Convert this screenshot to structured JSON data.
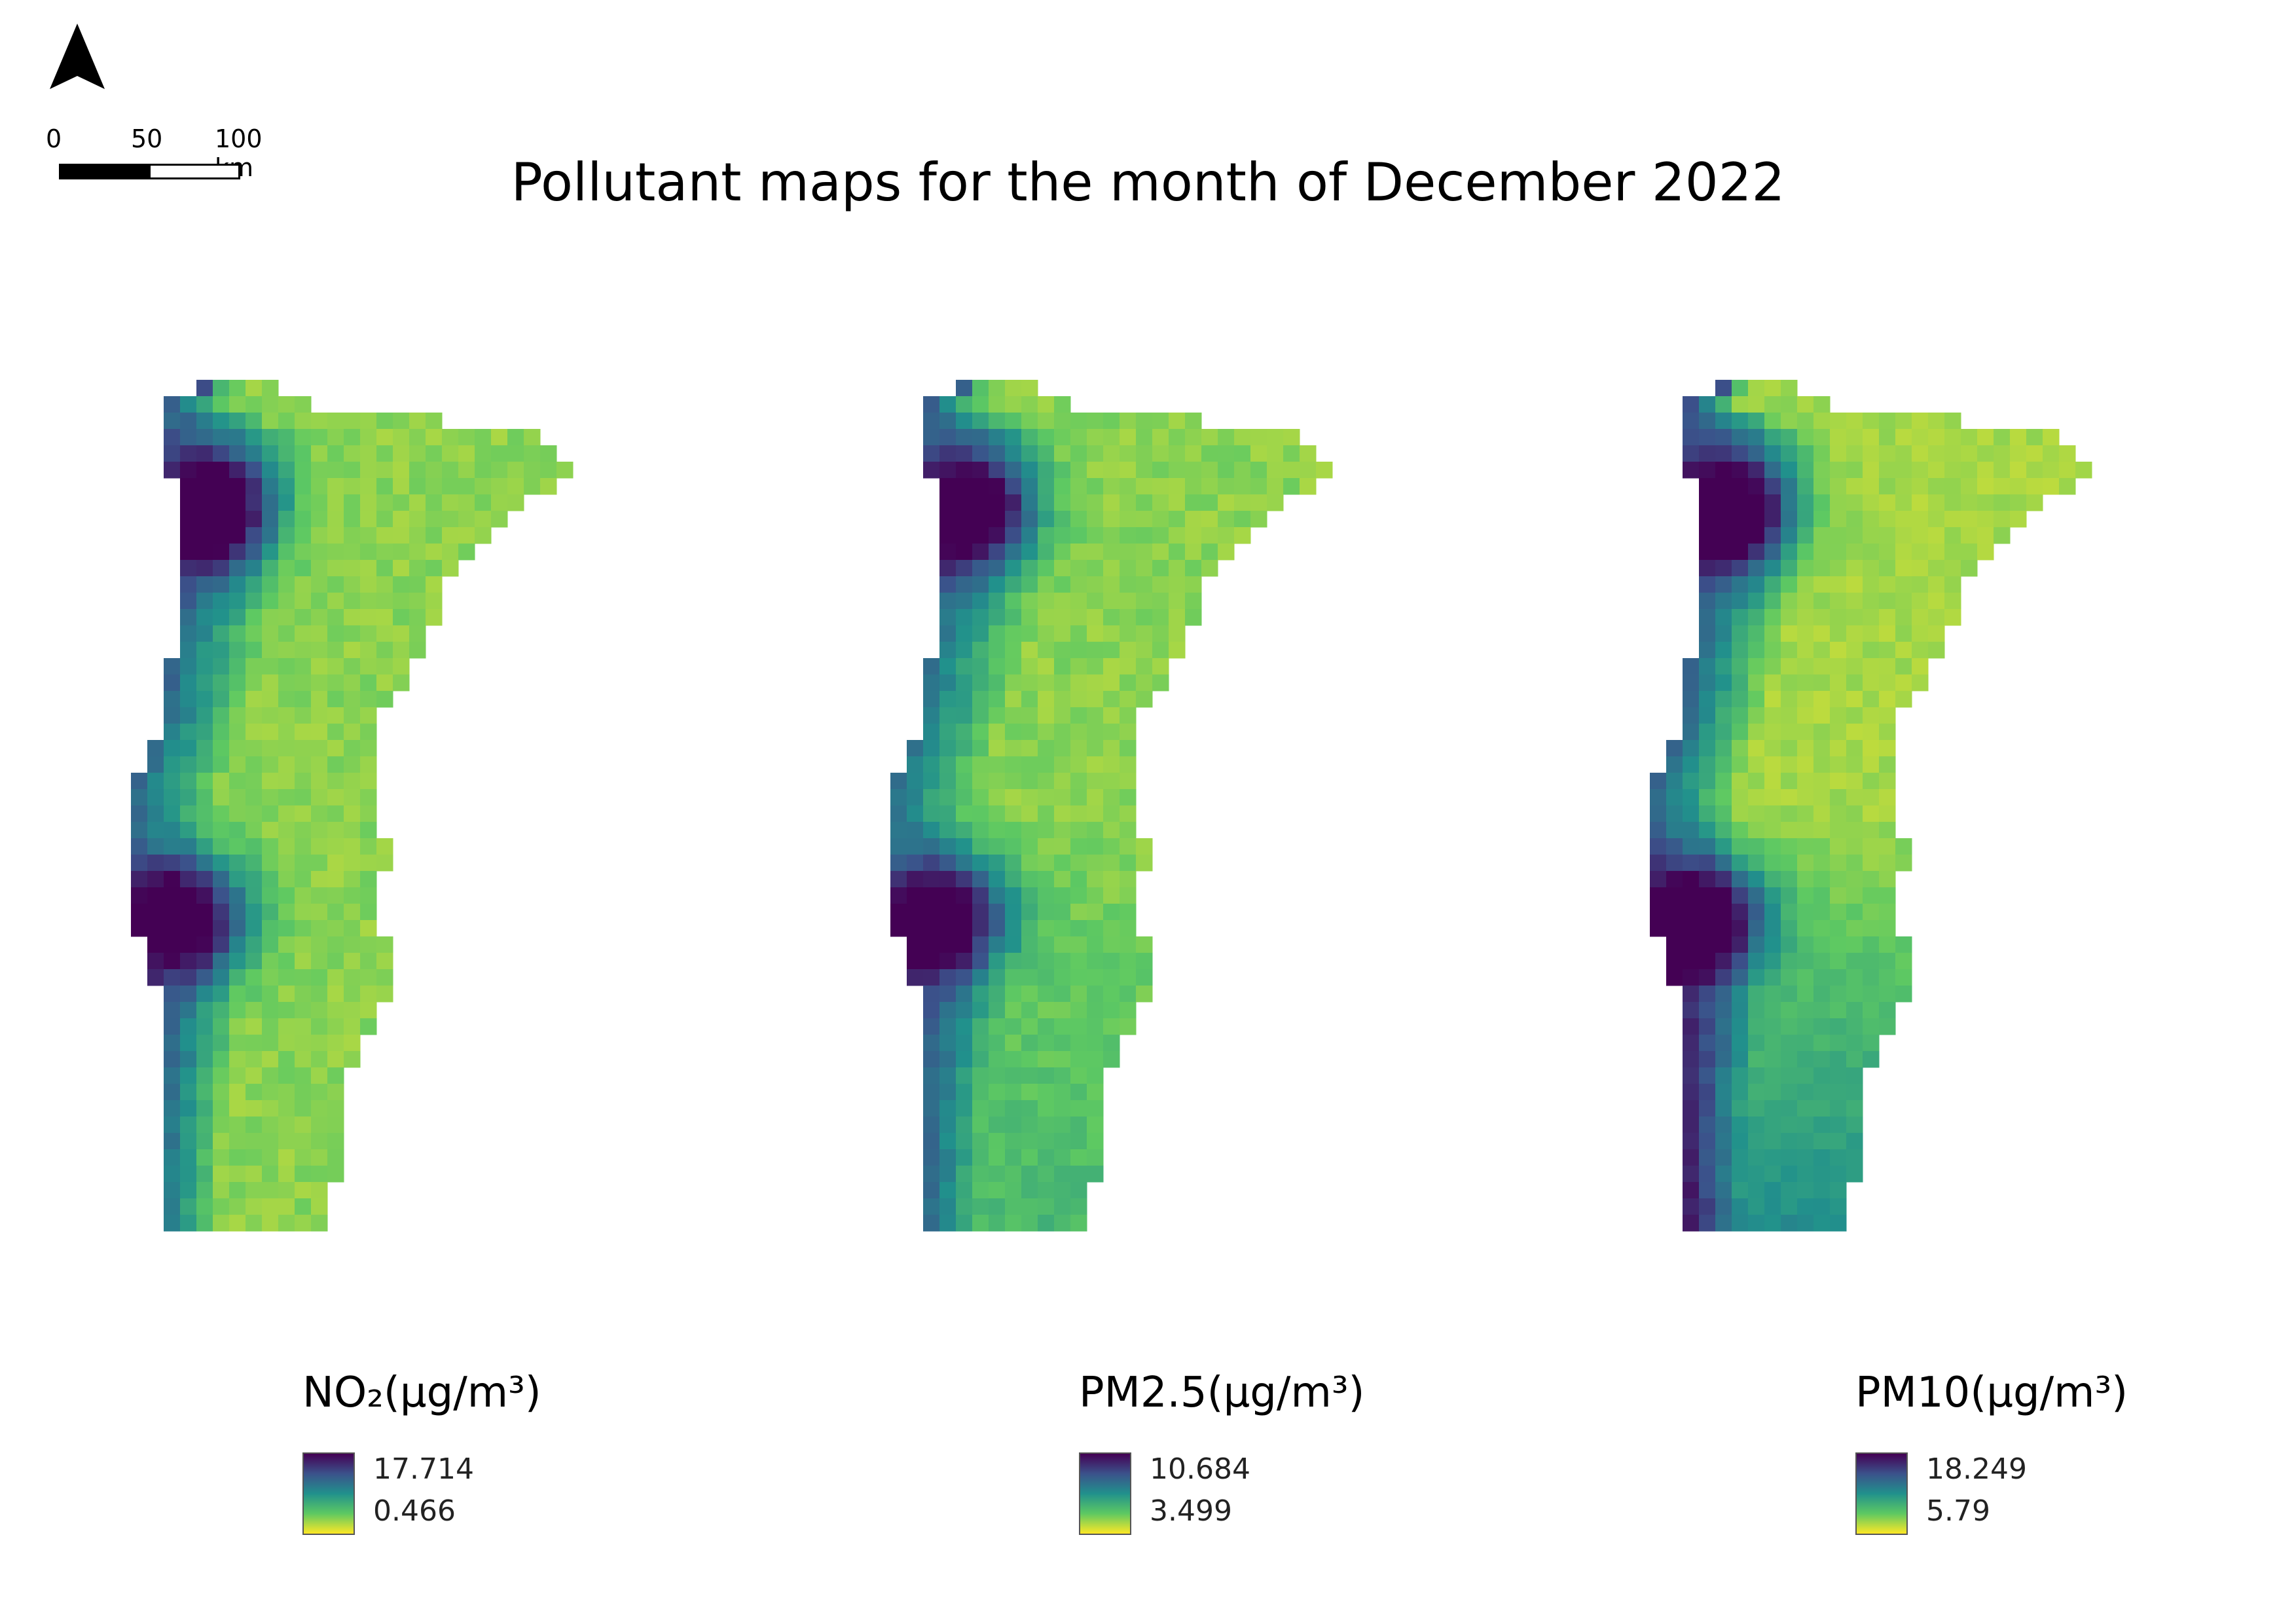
{
  "title": "Pollutant maps for the month of December 2022",
  "north_arrow": {
    "icon": "north-arrow-icon"
  },
  "scale_bar": {
    "labels": [
      "0",
      "50",
      "100 km"
    ]
  },
  "colormap": [
    "#440154",
    "#3b528b",
    "#21918c",
    "#5ec962",
    "#fde725"
  ],
  "maps": [
    {
      "id": "no2",
      "legend_title": "NO₂(µg/m³)",
      "max": "17.714",
      "min": "0.466"
    },
    {
      "id": "pm25",
      "legend_title": "PM2.5(µg/m³)",
      "max": "10.684",
      "min": "3.499"
    },
    {
      "id": "pm10",
      "legend_title": "PM10(µg/m³)",
      "max": "18.249",
      "min": "5.79"
    }
  ]
}
